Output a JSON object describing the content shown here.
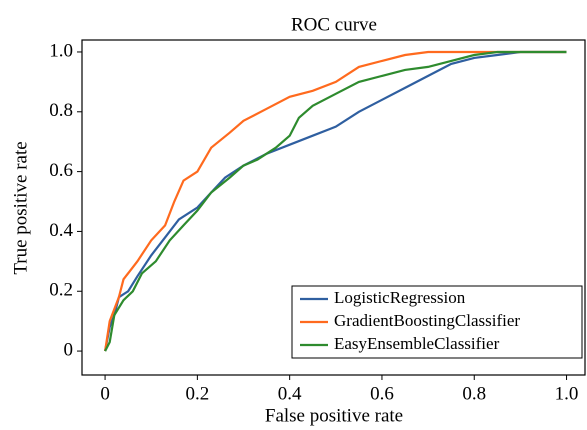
{
  "chart_data": {
    "type": "line",
    "title": "ROC curve",
    "x_label": "False positive rate",
    "y_label": "True positive rate",
    "xlim": [
      -0.05,
      1.04
    ],
    "ylim": [
      -0.08,
      1.04
    ],
    "xticks": [
      0,
      0.2,
      0.4,
      0.6,
      0.8,
      {
        "value": 1,
        "label": "1.0"
      }
    ],
    "yticks": [
      0,
      0.2,
      0.4,
      0.6,
      0.8,
      {
        "value": 1,
        "label": "1.0"
      }
    ],
    "grid": false,
    "legend": "lower right",
    "series": [
      {
        "name": "LogisticRegression",
        "color": "#2f5fa0",
        "x": [
          0,
          0.01,
          0.02,
          0.03,
          0.05,
          0.07,
          0.1,
          0.13,
          0.16,
          0.2,
          0.23,
          0.26,
          0.3,
          0.35,
          0.4,
          0.45,
          0.5,
          0.55,
          0.6,
          0.65,
          0.7,
          0.75,
          0.8,
          0.85,
          0.9,
          1.0
        ],
        "values": [
          0,
          0.08,
          0.12,
          0.18,
          0.2,
          0.25,
          0.32,
          0.38,
          0.44,
          0.48,
          0.53,
          0.58,
          0.62,
          0.66,
          0.69,
          0.72,
          0.75,
          0.8,
          0.84,
          0.88,
          0.92,
          0.96,
          0.98,
          0.99,
          1.0,
          1.0
        ]
      },
      {
        "name": "GradientBoostingClassifier",
        "color": "#ff6a1e",
        "x": [
          0,
          0.01,
          0.03,
          0.04,
          0.07,
          0.1,
          0.13,
          0.15,
          0.17,
          0.2,
          0.23,
          0.27,
          0.3,
          0.35,
          0.4,
          0.45,
          0.5,
          0.55,
          0.6,
          0.65,
          0.7,
          1.0
        ],
        "values": [
          0,
          0.1,
          0.18,
          0.24,
          0.3,
          0.37,
          0.42,
          0.5,
          0.57,
          0.6,
          0.68,
          0.73,
          0.77,
          0.81,
          0.85,
          0.87,
          0.9,
          0.95,
          0.97,
          0.99,
          1.0,
          1.0
        ]
      },
      {
        "name": "EasyEnsembleClassifier",
        "color": "#2e8b2e",
        "x": [
          0,
          0.01,
          0.02,
          0.04,
          0.06,
          0.08,
          0.11,
          0.14,
          0.17,
          0.2,
          0.23,
          0.27,
          0.3,
          0.33,
          0.37,
          0.4,
          0.42,
          0.45,
          0.5,
          0.55,
          0.6,
          0.65,
          0.7,
          0.75,
          0.8,
          0.85,
          1.0
        ],
        "values": [
          0,
          0.03,
          0.12,
          0.17,
          0.2,
          0.26,
          0.3,
          0.37,
          0.42,
          0.47,
          0.53,
          0.58,
          0.62,
          0.64,
          0.68,
          0.72,
          0.78,
          0.82,
          0.86,
          0.9,
          0.92,
          0.94,
          0.95,
          0.97,
          0.99,
          1.0,
          1.0
        ]
      }
    ]
  }
}
